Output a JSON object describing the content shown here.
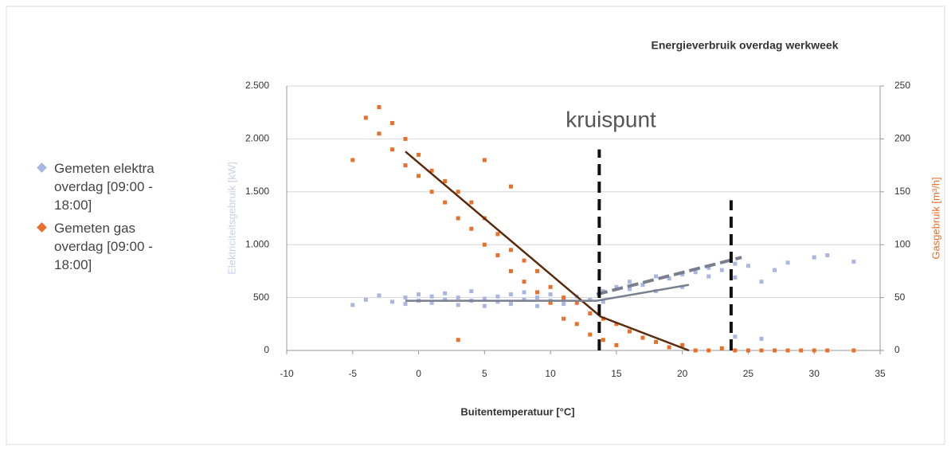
{
  "chart_data": {
    "type": "scatter",
    "title": "Energieverbruik overdag werkweek",
    "xlabel": "Buitentemperatuur [°C]",
    "ylabel": "Elektriciteitsgebruik [kW]",
    "y2label": "Gasgebruik [m³/h]",
    "annotation": "kruispunt",
    "xlim": [
      -10,
      35
    ],
    "xticks": [
      -10,
      -5,
      0,
      5,
      10,
      15,
      20,
      25,
      30,
      35
    ],
    "ylim": [
      0,
      2500
    ],
    "yticks": [
      0,
      500,
      {
        "value": 1000,
        "label": "1.000"
      },
      {
        "value": 1500,
        "label": "1.500"
      },
      {
        "value": 2000,
        "label": "2.000"
      },
      {
        "value": 2500,
        "label": "2.500"
      }
    ],
    "y2lim": [
      0,
      250
    ],
    "y2ticks": [
      0,
      50,
      100,
      150,
      200,
      250
    ],
    "grid": true,
    "legend": "left",
    "series": [
      {
        "name": "Gemeten elektra overdag [09:00 - 18:00]",
        "color": "#a9b6e2",
        "x": [
          -5,
          -4,
          -3,
          -2,
          -1,
          -1,
          0,
          0,
          1,
          1,
          2,
          2,
          3,
          3,
          4,
          4,
          5,
          5,
          6,
          6,
          7,
          7,
          8,
          8,
          9,
          9,
          10,
          10,
          11,
          11,
          12,
          13,
          14,
          14,
          15,
          16,
          16,
          17,
          18,
          18,
          19,
          20,
          20,
          21,
          22,
          22,
          23,
          24,
          24,
          25,
          26,
          27,
          28,
          30,
          31,
          33,
          24,
          26
        ],
        "values": [
          430,
          480,
          520,
          460,
          500,
          440,
          530,
          470,
          510,
          450,
          480,
          540,
          500,
          430,
          470,
          560,
          490,
          420,
          510,
          460,
          530,
          440,
          480,
          550,
          500,
          420,
          470,
          530,
          490,
          440,
          510,
          480,
          560,
          460,
          600,
          580,
          650,
          620,
          700,
          560,
          680,
          720,
          600,
          740,
          700,
          780,
          760,
          820,
          690,
          800,
          650,
          760,
          830,
          880,
          900,
          840,
          130,
          110
        ]
      },
      {
        "name": "Gemeten gas overdag [09:00 - 18:00]",
        "color": "#e8702a",
        "axis": "y2",
        "x": [
          -5,
          -4,
          -3,
          -3,
          -2,
          -2,
          -1,
          -1,
          0,
          0,
          1,
          1,
          2,
          2,
          3,
          3,
          4,
          4,
          5,
          5,
          6,
          6,
          7,
          7,
          8,
          8,
          9,
          9,
          10,
          10,
          11,
          11,
          12,
          12,
          13,
          13,
          14,
          14,
          15,
          15,
          16,
          17,
          18,
          19,
          20,
          21,
          22,
          23,
          24,
          25,
          26,
          27,
          28,
          29,
          30,
          31,
          33,
          3,
          5,
          7
        ],
        "values": [
          180,
          220,
          230,
          205,
          215,
          190,
          200,
          175,
          185,
          165,
          170,
          150,
          160,
          140,
          150,
          125,
          140,
          115,
          125,
          100,
          110,
          90,
          95,
          75,
          85,
          65,
          75,
          55,
          60,
          45,
          50,
          30,
          45,
          25,
          35,
          15,
          30,
          10,
          25,
          5,
          18,
          12,
          8,
          3,
          5,
          0,
          0,
          2,
          0,
          0,
          0,
          0,
          0,
          0,
          0,
          0,
          0,
          10,
          180,
          155
        ]
      }
    ],
    "trend_lines": [
      {
        "color": "#5a2a0a",
        "axis": "y2",
        "x": [
          -1,
          13.8,
          20.5
        ],
        "values": [
          188,
          32,
          0
        ]
      },
      {
        "color": "#7a7f8f",
        "x": [
          -1,
          13.5,
          20.5
        ],
        "values": [
          470,
          470,
          620
        ]
      },
      {
        "color": "#7a7f8f",
        "dash": true,
        "x": [
          13.5,
          24.5
        ],
        "values": [
          530,
          880
        ]
      }
    ],
    "reference_lines": [
      {
        "x": 13.7,
        "values": [
          0,
          1900
        ]
      },
      {
        "x": 23.7,
        "values": [
          0,
          1420
        ]
      }
    ]
  }
}
